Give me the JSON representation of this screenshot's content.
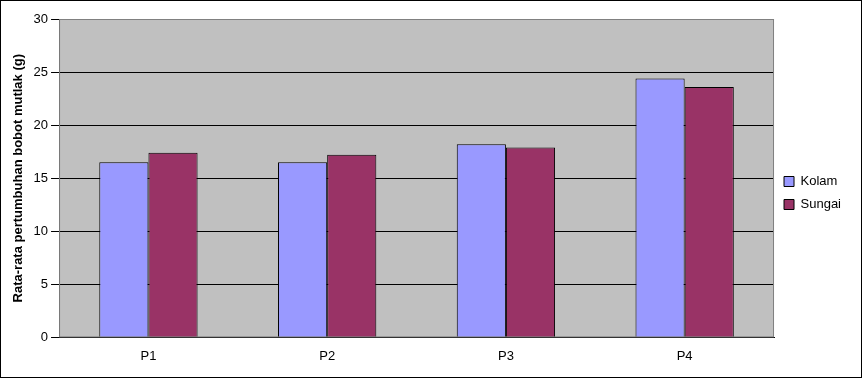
{
  "chart_data": {
    "type": "bar",
    "y_label": "Rata-rata pertumbuhan bobot mutlak (g)",
    "categories": [
      "P1",
      "P2",
      "P3",
      "P4"
    ],
    "series": [
      {
        "name": "Kolam",
        "color": "#9999ff",
        "values": [
          16.5,
          16.5,
          18.2,
          24.4
        ]
      },
      {
        "name": "Sungai",
        "color": "#993366",
        "values": [
          17.4,
          17.2,
          17.9,
          23.6
        ]
      }
    ],
    "ylim": [
      0,
      30
    ],
    "yticks": [
      0,
      5,
      10,
      15,
      20,
      25,
      30
    ],
    "grid": true,
    "legend": "right"
  }
}
